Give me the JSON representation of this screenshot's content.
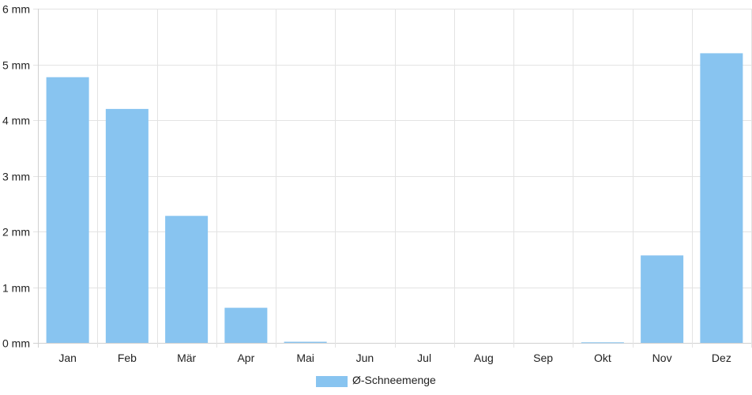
{
  "chart_data": {
    "type": "bar",
    "categories": [
      "Jan",
      "Feb",
      "Mär",
      "Apr",
      "Mai",
      "Jun",
      "Jul",
      "Aug",
      "Sep",
      "Okt",
      "Nov",
      "Dez"
    ],
    "series": [
      {
        "name": "Ø-Schneemenge",
        "values": [
          4.77,
          4.2,
          2.28,
          0.63,
          0.02,
          0,
          0,
          0,
          0,
          0.01,
          1.57,
          5.2
        ]
      }
    ],
    "y_tick_labels": [
      "0 mm",
      "1 mm",
      "2 mm",
      "3 mm",
      "4 mm",
      "5 mm",
      "6 mm"
    ],
    "ylim": [
      0,
      6
    ],
    "y_unit": "mm",
    "grid": true,
    "legend_position": "bottom-center",
    "colors": {
      "bar": "#88c4f0",
      "grid": "#e3e3e3",
      "axis": "#d0d0d0",
      "text": "#222222"
    }
  }
}
